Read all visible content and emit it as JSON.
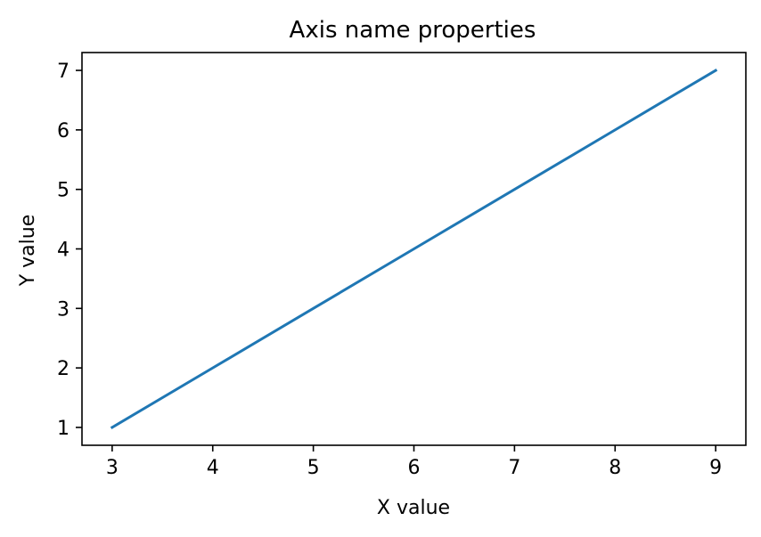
{
  "chart_data": {
    "type": "line",
    "title": "Axis name properties",
    "xlabel": "X value",
    "ylabel": "Y value",
    "x": [
      3,
      4,
      5,
      6,
      7,
      8,
      9
    ],
    "series": [
      {
        "values": [
          1,
          2,
          3,
          4,
          5,
          6,
          7
        ],
        "color": "#1f77b4"
      }
    ],
    "xlim": [
      2.7,
      9.3
    ],
    "ylim": [
      0.7,
      7.3
    ],
    "xticks": [
      3,
      4,
      5,
      6,
      7,
      8,
      9
    ],
    "yticks": [
      1,
      2,
      3,
      4,
      5,
      6,
      7
    ],
    "grid": false,
    "legend": "none"
  }
}
